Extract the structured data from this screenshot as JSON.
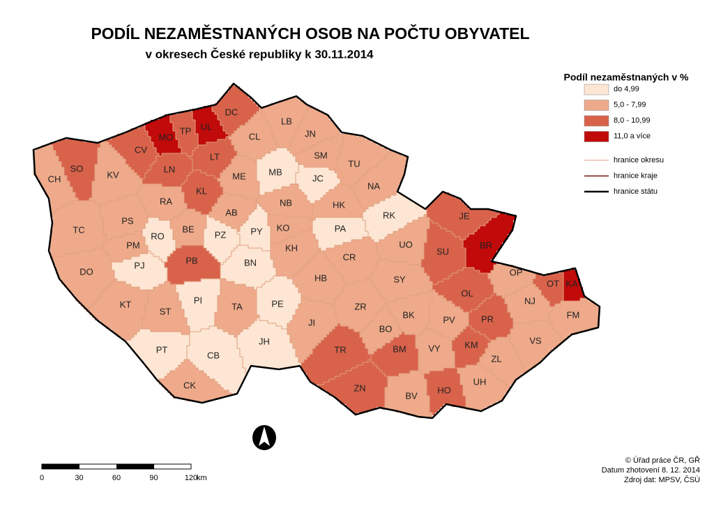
{
  "title": "PODÍL NEZAMĚSTNANÝCH OSOB NA POČTU OBYVATEL",
  "subtitle": "v okresech České republiky k 30.11.2014",
  "legend": {
    "title": "Podíl nezaměstnaných v %",
    "classes": [
      {
        "label": "do 4,99",
        "color": "#fde6d3"
      },
      {
        "label": "5,0 - 7,99",
        "color": "#eeaa8a"
      },
      {
        "label": "8,0 - 10,99",
        "color": "#d9624b"
      },
      {
        "label": "11,0 a více",
        "color": "#c10a0a"
      }
    ],
    "lines": [
      {
        "label": "hranice okresu",
        "color": "#e0a080",
        "width": 1
      },
      {
        "label": "hranice kraje",
        "color": "#7a1010",
        "width": 1.5
      },
      {
        "label": "hranice státu",
        "color": "#000000",
        "width": 2.5
      }
    ]
  },
  "districts": [
    {
      "code": "MO",
      "class": 3
    },
    {
      "code": "UL",
      "class": 3
    },
    {
      "code": "TP",
      "class": 2
    },
    {
      "code": "DC",
      "class": 2
    },
    {
      "code": "CV",
      "class": 2
    },
    {
      "code": "LN",
      "class": 2
    },
    {
      "code": "LT",
      "class": 2
    },
    {
      "code": "SO",
      "class": 2
    },
    {
      "code": "CH",
      "class": 1
    },
    {
      "code": "KV",
      "class": 1
    },
    {
      "code": "KL",
      "class": 2
    },
    {
      "code": "ME",
      "class": 1
    },
    {
      "code": "CL",
      "class": 1
    },
    {
      "code": "LB",
      "class": 1
    },
    {
      "code": "JN",
      "class": 1
    },
    {
      "code": "SM",
      "class": 1
    },
    {
      "code": "MB",
      "class": 0
    },
    {
      "code": "JC",
      "class": 0
    },
    {
      "code": "TU",
      "class": 1
    },
    {
      "code": "NA",
      "class": 1
    },
    {
      "code": "RA",
      "class": 1
    },
    {
      "code": "AB",
      "class": 1
    },
    {
      "code": "NB",
      "class": 1
    },
    {
      "code": "HK",
      "class": 1
    },
    {
      "code": "RK",
      "class": 0
    },
    {
      "code": "TC",
      "class": 1
    },
    {
      "code": "PS",
      "class": 1
    },
    {
      "code": "RO",
      "class": 0
    },
    {
      "code": "BE",
      "class": 1
    },
    {
      "code": "PZ",
      "class": 0
    },
    {
      "code": "PY",
      "class": 0
    },
    {
      "code": "KO",
      "class": 1
    },
    {
      "code": "PA",
      "class": 0
    },
    {
      "code": "UO",
      "class": 1
    },
    {
      "code": "PM",
      "class": 1
    },
    {
      "code": "PJ",
      "class": 0
    },
    {
      "code": "PB",
      "class": 2
    },
    {
      "code": "BN",
      "class": 0
    },
    {
      "code": "KH",
      "class": 1
    },
    {
      "code": "CR",
      "class": 1
    },
    {
      "code": "SU",
      "class": 2
    },
    {
      "code": "BR",
      "class": 3
    },
    {
      "code": "JE",
      "class": 2
    },
    {
      "code": "DO",
      "class": 1
    },
    {
      "code": "HB",
      "class": 1
    },
    {
      "code": "SY",
      "class": 1
    },
    {
      "code": "OP",
      "class": 1
    },
    {
      "code": "OT",
      "class": 2
    },
    {
      "code": "KA",
      "class": 3
    },
    {
      "code": "OL",
      "class": 2
    },
    {
      "code": "NJ",
      "class": 1
    },
    {
      "code": "KT",
      "class": 1
    },
    {
      "code": "PI",
      "class": 0
    },
    {
      "code": "TA",
      "class": 1
    },
    {
      "code": "PE",
      "class": 0
    },
    {
      "code": "ST",
      "class": 1
    },
    {
      "code": "ZR",
      "class": 1
    },
    {
      "code": "FM",
      "class": 1
    },
    {
      "code": "JI",
      "class": 1
    },
    {
      "code": "BO",
      "class": 1
    },
    {
      "code": "BK",
      "class": 1
    },
    {
      "code": "PV",
      "class": 1
    },
    {
      "code": "PR",
      "class": 2
    },
    {
      "code": "JH",
      "class": 0
    },
    {
      "code": "KM",
      "class": 2
    },
    {
      "code": "VS",
      "class": 1
    },
    {
      "code": "PT",
      "class": 0
    },
    {
      "code": "CB",
      "class": 0
    },
    {
      "code": "TR",
      "class": 2
    },
    {
      "code": "BM",
      "class": 2
    },
    {
      "code": "VY",
      "class": 1
    },
    {
      "code": "ZL",
      "class": 1
    },
    {
      "code": "UH",
      "class": 1
    },
    {
      "code": "CK",
      "class": 1
    },
    {
      "code": "ZN",
      "class": 2
    },
    {
      "code": "BV",
      "class": 1
    },
    {
      "code": "HO",
      "class": 2
    }
  ],
  "scale": {
    "ticks": [
      "0",
      "30",
      "60",
      "90",
      "120"
    ],
    "unit": "km"
  },
  "credits": [
    "© Úřad práce ČR, GŘ",
    "Datum zhotovení 8. 12. 2014",
    "Zdroj dat: MPSV, ČSÚ"
  ]
}
